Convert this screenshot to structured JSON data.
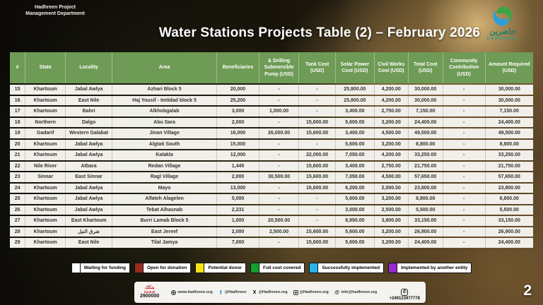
{
  "header": {
    "dept_line1": "Hadhreen Project",
    "dept_line2": "Management Department",
    "title": "Water Stations Projects Table (2) – February 2026",
    "logo": {
      "brand_arabic": "حاضرين",
      "brand_en": "HADHREEN"
    }
  },
  "table": {
    "columns": [
      "#",
      "State",
      "Locality",
      "Area",
      "Beneficiaries",
      "& Drilling Submersible Pump (USD)",
      "Tank Cost (USD)",
      "Solar Power Cost (USD)",
      "Civil Works Cost (USD)",
      "Total Cost (USD)",
      "Community Contribution (USD)",
      "Amount Required (USD)"
    ],
    "col_widths": [
      "3%",
      "7.7%",
      "8.9%",
      "20%",
      "8.1%",
      "7.6%",
      "7%",
      "7.4%",
      "6.5%",
      "6.6%",
      "8.1%",
      "9.1%"
    ],
    "rows": [
      [
        "15",
        "Khartoum",
        "Jabal Awlya",
        "Azhari Block 5",
        "20,000",
        "-",
        "-",
        "25,800.00",
        "4,200.00",
        "30,000.00",
        "-",
        "30,000.00"
      ],
      [
        "16",
        "Khartoum",
        "East Nile",
        "Haj Yousif - Imtidad block 5",
        "25,200",
        "-",
        "-",
        "25,800.00",
        "4,200.00",
        "30,000.00",
        "-",
        "30,000.00"
      ],
      [
        "17",
        "Khartoum",
        "Bahri",
        "Alkhobgalab",
        "3,000",
        "1,000.00",
        "-",
        "3,400.00",
        "2,750.00",
        "7,150.00",
        "-",
        "7,150.00"
      ],
      [
        "18",
        "Northern",
        "Dalgo",
        "Abu Sara",
        "2,000",
        "-",
        "15,600.00",
        "5,600.00",
        "3,200.00",
        "24,400.00",
        "-",
        "24,400.00"
      ],
      [
        "19",
        "Gadarif",
        "Western Galabat",
        "Jinan Village",
        "16,000",
        "26,000.00",
        "15,600.00",
        "3,400.00",
        "4,500.00",
        "49,500.00",
        "-",
        "49,500.00"
      ],
      [
        "20",
        "Khartoum",
        "Jabal Awlya",
        "Algtati South",
        "15,000",
        "-",
        "-",
        "5,600.00",
        "3,200.00",
        "8,800.00",
        "-",
        "8,800.00"
      ],
      [
        "21",
        "Khartoum",
        "Jabal Awlya",
        "Kalakla",
        "12,000",
        "-",
        "22,000.00",
        "7,050.00",
        "4,200.00",
        "33,250.00",
        "-",
        "33,250.00"
      ],
      [
        "22",
        "Nile River",
        "Atbara",
        "Redan Village",
        "1,445",
        "-",
        "15,600.00",
        "3,400.00",
        "2,750.00",
        "21,750.00",
        "-",
        "21,750.00"
      ],
      [
        "23",
        "Sinnar",
        "East Sinnar",
        "Ragl Village",
        "2,000",
        "30,500.00",
        "15,600.00",
        "7,050.00",
        "4,500.00",
        "57,650.00",
        "-",
        "57,650.00"
      ],
      [
        "24",
        "Khartoum",
        "Jabal Awlya",
        "Mayo",
        "13,000",
        "-",
        "15,600.00",
        "6,200.00",
        "2,000.00",
        "23,800.00",
        "-",
        "23,800.00"
      ],
      [
        "25",
        "Khartoum",
        "Jabal Awlya",
        "Alfateh Alagelen",
        "5,000",
        "-",
        "-",
        "5,600.00",
        "3,200.00",
        "8,800.00",
        "-",
        "8,800.00"
      ],
      [
        "26",
        "Khartoum",
        "Jabal Awlya",
        "Tebat Alhasnab",
        "2,231",
        "-",
        "-",
        "3,000.00",
        "2,500.00",
        "5,500.00",
        "-",
        "5,500.00"
      ],
      [
        "27",
        "Khartoum",
        "East Khartoum",
        "Burri Lamab Block 5",
        "1,000",
        "20,500.00",
        "-",
        "8,850.00",
        "3,800.00",
        "33,150.00",
        "-",
        "33,150.00"
      ],
      [
        "28",
        "Khartoum",
        "شرق النيل",
        "East Jereef",
        "2,000",
        "2,500.00",
        "15,600.00",
        "5,600.00",
        "3,200.00",
        "26,900.00",
        "-",
        "26,900.00"
      ],
      [
        "29",
        "Khartoum",
        "East Nile",
        "Tilal Jamya",
        "7,000",
        "-",
        "15,600.00",
        "5,600.00",
        "3,200.00",
        "24,400.00",
        "-",
        "24,400.00"
      ]
    ]
  },
  "legend": [
    {
      "label": "Waiting for funding",
      "color": "#ffffff"
    },
    {
      "label": "Open for donation",
      "color": "#9a2b21"
    },
    {
      "label": "Potential donor",
      "color": "#f5e216"
    },
    {
      "label": "Full cost covered",
      "color": "#149f2f"
    },
    {
      "label": "Successfully implemented",
      "color": "#25b3e8"
    },
    {
      "label": "Implemented by another entity",
      "color": "#992ad0"
    }
  ],
  "footer": {
    "bankak_arabic": "بنكك",
    "bankak_en": "bankak",
    "bankak_number": "2900000",
    "contacts": [
      {
        "icon": "globe",
        "text": "www.hadhreen.org"
      },
      {
        "icon": "facebook",
        "text": "@Hadhreen"
      },
      {
        "icon": "x",
        "text": "@Hadhreen.org"
      },
      {
        "icon": "instagram",
        "text": "@Hadhreen.org"
      },
      {
        "icon": "threads",
        "text": "info@hadhreen.org"
      }
    ],
    "whatsapp_number": "+249123977778",
    "page_number": "2"
  }
}
